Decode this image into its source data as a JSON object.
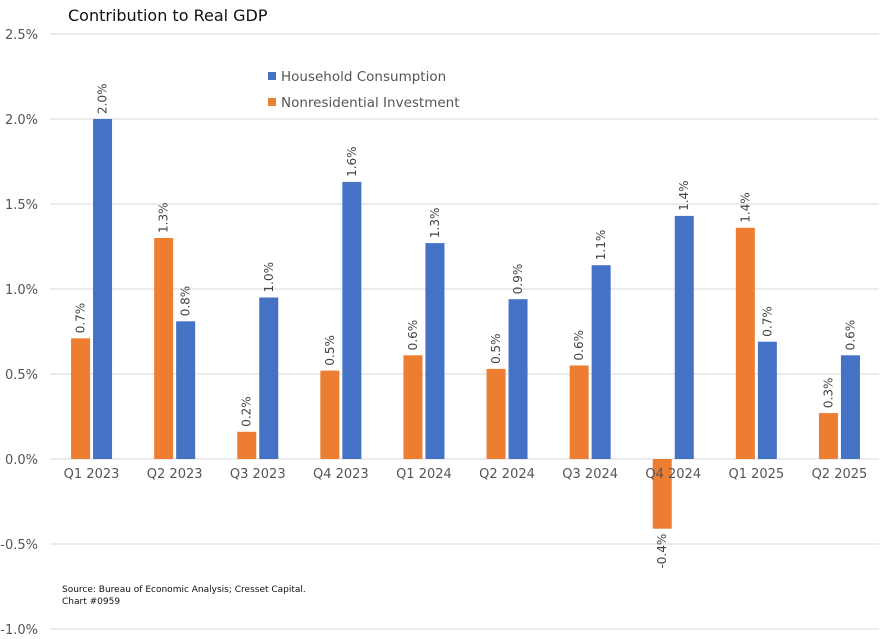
{
  "chart_data": {
    "type": "bar",
    "title": "Contribution to Real GDP",
    "categories": [
      "Q1 2023",
      "Q2 2023",
      "Q3 2023",
      "Q4 2023",
      "Q1 2024",
      "Q2 2024",
      "Q3 2024",
      "Q4 2024",
      "Q1 2025",
      "Q2 2025"
    ],
    "series": [
      {
        "name": "Nonresidential Investment",
        "color": "#ED7D31",
        "values": [
          0.71,
          1.3,
          0.16,
          0.52,
          0.61,
          0.53,
          0.55,
          -0.41,
          1.36,
          0.27
        ],
        "labels": [
          "0.7%",
          "1.3%",
          "0.2%",
          "0.5%",
          "0.6%",
          "0.5%",
          "0.6%",
          "-0.4%",
          "1.4%",
          "0.3%"
        ]
      },
      {
        "name": "Household Consumption",
        "color": "#4472C4",
        "values": [
          2.0,
          0.81,
          0.95,
          1.63,
          1.27,
          0.94,
          1.14,
          1.43,
          0.69,
          0.61
        ],
        "labels": [
          "2.0%",
          "0.8%",
          "1.0%",
          "1.6%",
          "1.3%",
          "0.9%",
          "1.1%",
          "1.4%",
          "0.7%",
          "0.6%"
        ]
      }
    ],
    "ylim": [
      -1.0,
      2.5
    ],
    "yticks": [
      2.5,
      2.0,
      1.5,
      1.0,
      0.5,
      0.0,
      -0.5,
      -1.0
    ],
    "ytick_labels": [
      "2.5%",
      "2.0%",
      "1.5%",
      "1.0%",
      "0.5%",
      "0.0%",
      "-0.5%",
      "-1.0%"
    ],
    "grid": true,
    "legend_order": [
      "Household Consumption",
      "Nonresidential Investment"
    ],
    "legend_position": "top-center"
  },
  "source": {
    "line1": "Source: Bureau of Economic Analysis; Cresset Capital.",
    "line2": "Chart #0959"
  }
}
